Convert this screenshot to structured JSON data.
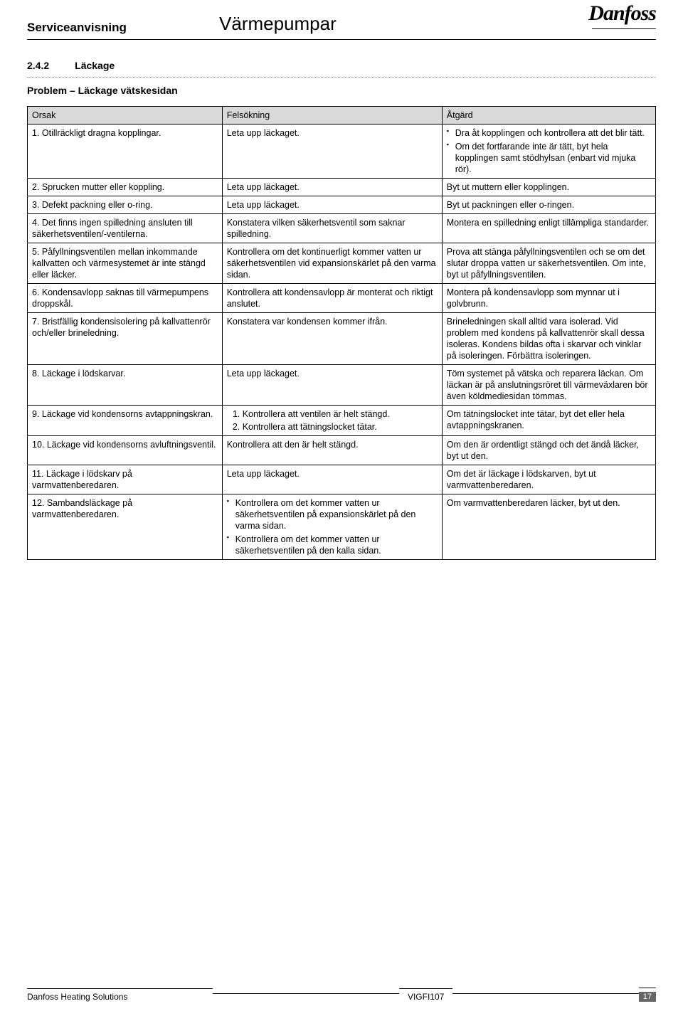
{
  "header": {
    "left": "Serviceanvisning",
    "center": "Värmepumpar",
    "brand": "Danfoss"
  },
  "section": {
    "number": "2.4.2",
    "title": "Läckage",
    "problem_title": "Problem – Läckage vätskesidan"
  },
  "table": {
    "headers": [
      "Orsak",
      "Felsökning",
      "Åtgärd"
    ],
    "rows": [
      {
        "c1": "1. Otillräckligt dragna kopplingar.",
        "c2": "Leta upp läckaget.",
        "c3_list": [
          "Dra åt kopplingen och kontrollera att det blir tätt.",
          "Om det fortfarande inte är tätt, byt hela kopplingen samt stödhylsan (enbart vid mjuka rör)."
        ]
      },
      {
        "c1": "2. Sprucken mutter eller koppling.",
        "c2": "Leta upp läckaget.",
        "c3": "Byt ut muttern eller kopplingen."
      },
      {
        "c1": "3. Defekt packning eller o-ring.",
        "c2": "Leta upp läckaget.",
        "c3": "Byt ut packningen eller o-ringen."
      },
      {
        "c1": "4. Det finns ingen spilledning ansluten till säkerhetsventilen/-ventilerna.",
        "c2": "Konstatera vilken säkerhetsventil som saknar spilledning.",
        "c3": "Montera en spilledning enligt tillämpliga standarder."
      },
      {
        "c1": "5. Påfyllningsventilen mellan inkommande kallvatten och värmesystemet är inte stängd eller läcker.",
        "c2": "Kontrollera om det kontinuerligt kommer vatten ur säkerhetsventilen vid expansionskärlet på den varma sidan.",
        "c3": "Prova att stänga påfyllningsventilen och se om det slutar droppa vatten ur säkerhetsventilen. Om inte, byt ut påfyllningsventilen."
      },
      {
        "c1": "6. Kondensavlopp saknas till värmepumpens droppskål.",
        "c2": "Kontrollera att kondensavlopp är monterat och riktigt anslutet.",
        "c3": "Montera på kondensavlopp som mynnar ut i golvbrunn."
      },
      {
        "c1": "7. Bristfällig kondensisolering på kallvattenrör och/eller brineledning.",
        "c2": "Konstatera var kondensen kommer ifrån.",
        "c3": "Brineledningen skall alltid vara isolerad. Vid problem med kondens på kallvattenrör skall dessa isoleras. Kondens bildas ofta i skarvar och vinklar på isoleringen. Förbättra isoleringen."
      },
      {
        "c1": "8. Läckage i lödskarvar.",
        "c2": "Leta upp läckaget.",
        "c3": "Töm systemet på vätska och reparera läckan. Om läckan är på anslutningsröret till värmeväxlaren bör även köldmediesidan tömmas."
      },
      {
        "c1": "9. Läckage vid kondensorns avtappningskran.",
        "c2_olist": [
          "Kontrollera att ventilen är helt stängd.",
          "Kontrollera att tätningslocket tätar."
        ],
        "c3": "Om tätningslocket inte tätar, byt det eller hela avtappningskranen."
      },
      {
        "c1": "10. Läckage vid kondensorns avluftningsventil.",
        "c2": "Kontrollera att den är helt stängd.",
        "c3": "Om den är ordentligt stängd och det ändå läcker, byt ut den."
      },
      {
        "c1": "11. Läckage i lödskarv på varmvattenberedaren.",
        "c2": "Leta upp läckaget.",
        "c3": "Om det är läckage i lödskarven, byt ut varmvattenberedaren."
      },
      {
        "c1": "12. Sambandsläckage på varmvattenberedaren.",
        "c2_list": [
          "Kontrollera om det kommer vatten ur säkerhetsventilen på expansionskärlet på den varma sidan.",
          "Kontrollera om det kommer vatten ur säkerhetsventilen på den kalla sidan."
        ],
        "c3": "Om varmvattenberedaren läcker, byt ut den."
      }
    ]
  },
  "footer": {
    "left": "Danfoss Heating Solutions",
    "mid": "VIGFI107",
    "page": "17"
  }
}
